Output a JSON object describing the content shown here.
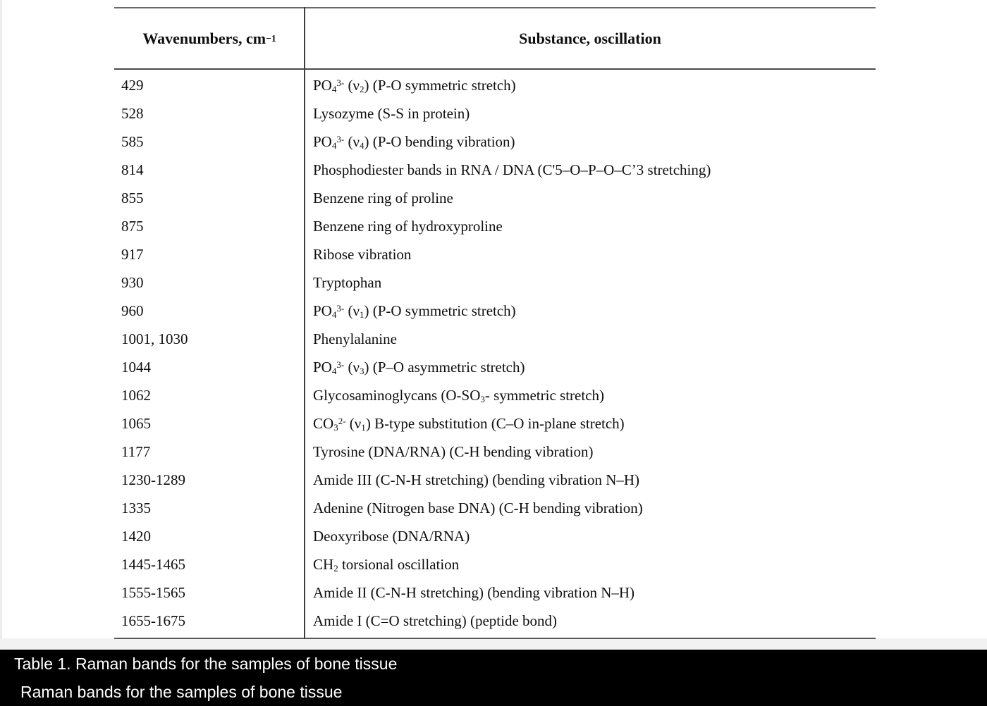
{
  "colors": {
    "page_background": "#ffffff",
    "table_border_heavy": "#6a6a6a",
    "table_border_inner": "#4a4a4a",
    "text": "#0f0f0f",
    "caption_background": "#000000",
    "caption_text": "#ffffff"
  },
  "table": {
    "header": {
      "wavenumbers_html": "Wavenumbers, cm<sup>−1</sup>",
      "substance": "Substance, oscillation"
    },
    "rows": [
      {
        "wavenumbers": "429",
        "substance_html": "PO<sub>4</sub><sup>3-</sup> (ν<sub>2</sub>) (P-O symmetric stretch)"
      },
      {
        "wavenumbers": "528",
        "substance_html": "Lysozyme (S-S in protein)"
      },
      {
        "wavenumbers": "585",
        "substance_html": "PO<sub>4</sub><sup>3-</sup> (ν<sub>4</sub>) (P-O bending vibration)"
      },
      {
        "wavenumbers": "814",
        "substance_html": "Phosphodiester bands in RNA / DNA (C'5–O–P–O–C’3 stretching)"
      },
      {
        "wavenumbers": "855",
        "substance_html": "Benzene ring of proline"
      },
      {
        "wavenumbers": "875",
        "substance_html": "Benzene ring of hydroxyproline"
      },
      {
        "wavenumbers": "917",
        "substance_html": "Ribose vibration"
      },
      {
        "wavenumbers": "930",
        "substance_html": "Tryptophan"
      },
      {
        "wavenumbers": "960",
        "substance_html": "PO<sub>4</sub><sup>3-</sup> (ν<sub>1</sub>) (P-O symmetric stretch)"
      },
      {
        "wavenumbers": "1001, 1030",
        "substance_html": "Phenylalanine"
      },
      {
        "wavenumbers": "1044",
        "substance_html": "PO<sub>4</sub><sup>3-</sup> (ν<sub>3</sub>) (P–O asymmetric stretch)"
      },
      {
        "wavenumbers": "1062",
        "substance_html": "Glycosaminoglycans (O-SO<sub>3</sub>- symmetric stretch)"
      },
      {
        "wavenumbers": "1065",
        "substance_html": "CO<sub>3</sub><sup>2-</sup> (ν<sub>1</sub>) B-type substitution (C–O in-plane stretch)"
      },
      {
        "wavenumbers": "1177",
        "substance_html": "Tyrosine (DNA/RNA) (C-H bending vibration)"
      },
      {
        "wavenumbers": "1230-1289",
        "substance_html": "Amide III (C-N-H stretching) (bending vibration N–H)"
      },
      {
        "wavenumbers": "1335",
        "substance_html": "Adenine (Nitrogen base DNA) (C-H bending vibration)"
      },
      {
        "wavenumbers": "1420",
        "substance_html": "Deoxyribose (DNA/RNA)"
      },
      {
        "wavenumbers": "1445-1465",
        "substance_html": "CH<sub>2</sub> torsional oscillation"
      },
      {
        "wavenumbers": "1555-1565",
        "substance_html": "Amide II (C-N-H stretching) (bending vibration N–H)"
      },
      {
        "wavenumbers": "1655-1675",
        "substance_html": "Amide I (C=O stretching) (peptide bond)"
      }
    ]
  },
  "caption": {
    "line1": "Table 1. Raman bands for the samples of bone tissue",
    "line2": "Raman bands for the samples of bone tissue"
  }
}
